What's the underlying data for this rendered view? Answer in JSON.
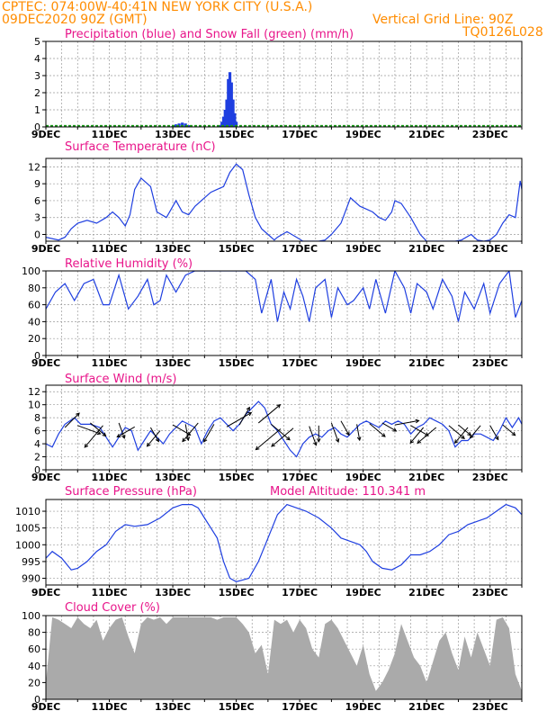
{
  "header": {
    "line1": "CPTEC:   074:00W-40:41N   NEW YORK CITY (U.S.A.)",
    "line2": "09DEC2020 90Z (GMT)",
    "grid_note": "Vertical Grid Line: 90Z",
    "code": "TQ0126L028",
    "color": "#ff8c00"
  },
  "colors": {
    "label": "#e8158a",
    "line": "#1f3fe0",
    "precip": "#1f3fe0",
    "snow": "#1a9a1a",
    "cloud": "#aaaaaa",
    "wind_arrow": "#000000"
  },
  "x_tick_labels": [
    "9DEC",
    "11DEC",
    "13DEC",
    "15DEC",
    "17DEC",
    "19DEC",
    "21DEC",
    "23DEC"
  ],
  "x_tick_days": [
    9,
    11,
    13,
    15,
    17,
    19,
    21,
    23
  ],
  "x_range": [
    9,
    24
  ],
  "chart_data": [
    {
      "type": "bar",
      "title": "Precipitation (blue) and Snow Fall (green) (mm/h)",
      "ylim": [
        0,
        5
      ],
      "yticks": [
        0,
        1,
        2,
        3,
        4,
        5
      ],
      "series": [
        {
          "name": "Precipitation (blue)",
          "color": "#1f3fe0",
          "points": [
            [
              13.0,
              0.05
            ],
            [
              13.1,
              0.15
            ],
            [
              13.2,
              0.2
            ],
            [
              13.3,
              0.25
            ],
            [
              13.4,
              0.2
            ],
            [
              13.5,
              0.1
            ],
            [
              14.5,
              0.1
            ],
            [
              14.55,
              0.3
            ],
            [
              14.6,
              0.6
            ],
            [
              14.65,
              1.0
            ],
            [
              14.7,
              1.6
            ],
            [
              14.75,
              2.8
            ],
            [
              14.8,
              3.2
            ],
            [
              14.85,
              2.6
            ],
            [
              14.9,
              1.6
            ],
            [
              14.95,
              0.8
            ],
            [
              15.0,
              0.3
            ]
          ]
        },
        {
          "name": "Snow Fall (green)",
          "color": "#1a9a1a",
          "points": [
            [
              9.0,
              0.03
            ],
            [
              24.0,
              0.03
            ]
          ]
        }
      ]
    },
    {
      "type": "line",
      "title": "Surface Temperature (nC)",
      "ylim": [
        -1.2,
        13.5
      ],
      "yticks": [
        0,
        3,
        6,
        9,
        12
      ],
      "ytick_labels": [
        "0",
        "3",
        "6",
        "9",
        "12"
      ],
      "x": [
        9.0,
        9.4,
        9.6,
        9.8,
        10.0,
        10.3,
        10.6,
        10.9,
        11.1,
        11.3,
        11.5,
        11.65,
        11.8,
        12.0,
        12.3,
        12.5,
        12.8,
        13.0,
        13.1,
        13.3,
        13.5,
        13.7,
        14.0,
        14.2,
        14.4,
        14.6,
        14.8,
        15.0,
        15.2,
        15.4,
        15.6,
        15.8,
        16.0,
        16.2,
        16.3,
        16.6,
        16.9,
        17.1,
        17.3,
        17.6,
        17.8,
        18.0,
        18.3,
        18.6,
        18.9,
        19.1,
        19.3,
        19.5,
        19.7,
        19.9,
        20.0,
        20.2,
        20.5,
        20.8,
        21.0,
        21.3,
        21.6,
        21.9,
        22.1,
        22.4,
        22.6,
        22.8,
        23.0,
        23.2,
        23.4,
        23.6,
        23.8,
        23.95,
        24.0
      ],
      "series": [
        {
          "name": "",
          "color": "#1f3fe0",
          "values": [
            -0.5,
            -1.0,
            -0.5,
            1.0,
            2.0,
            2.5,
            2.0,
            3.0,
            4.0,
            3.0,
            1.5,
            3.5,
            8.0,
            10.0,
            8.5,
            4.0,
            3.0,
            5.0,
            6.0,
            4.0,
            3.5,
            5.0,
            6.5,
            7.5,
            8.0,
            8.5,
            11.0,
            12.5,
            11.5,
            7.0,
            3.0,
            1.0,
            0.0,
            -1.0,
            -0.5,
            0.5,
            -0.5,
            -1.5,
            -2.0,
            -1.5,
            -1.0,
            0.0,
            2.0,
            6.5,
            5.0,
            4.5,
            4.0,
            3.0,
            2.5,
            4.0,
            6.0,
            5.5,
            3.0,
            0.0,
            -1.5,
            -2.0,
            -2.5,
            -1.8,
            -1.0,
            0.0,
            -1.0,
            -2.0,
            -1.0,
            0.0,
            2.0,
            3.5,
            3.0,
            9.5,
            8.0
          ]
        }
      ]
    },
    {
      "type": "line",
      "title": "Relative Humidity (%)",
      "ylim": [
        0,
        100
      ],
      "yticks": [
        0,
        20,
        40,
        60,
        80,
        100
      ],
      "x": [
        9.0,
        9.3,
        9.6,
        9.9,
        10.2,
        10.5,
        10.8,
        11.0,
        11.3,
        11.6,
        11.9,
        12.2,
        12.4,
        12.6,
        12.8,
        13.1,
        13.4,
        13.7,
        13.9,
        14.1,
        14.4,
        14.7,
        15.0,
        15.3,
        15.6,
        15.8,
        15.95,
        16.1,
        16.3,
        16.5,
        16.7,
        16.9,
        17.1,
        17.3,
        17.5,
        17.8,
        18.0,
        18.2,
        18.5,
        18.7,
        19.0,
        19.2,
        19.4,
        19.7,
        20.0,
        20.3,
        20.5,
        20.7,
        21.0,
        21.2,
        21.5,
        21.8,
        22.0,
        22.2,
        22.5,
        22.8,
        23.0,
        23.3,
        23.6,
        23.8,
        24.0
      ],
      "series": [
        {
          "name": "",
          "color": "#1f3fe0",
          "values": [
            55,
            75,
            85,
            65,
            85,
            90,
            60,
            60,
            95,
            55,
            70,
            90,
            60,
            65,
            95,
            75,
            95,
            100,
            100,
            100,
            100,
            100,
            100,
            100,
            90,
            50,
            70,
            90,
            40,
            75,
            55,
            90,
            70,
            40,
            80,
            90,
            45,
            80,
            60,
            65,
            80,
            55,
            90,
            50,
            100,
            80,
            50,
            85,
            75,
            55,
            90,
            70,
            40,
            75,
            55,
            85,
            50,
            85,
            100,
            45,
            65
          ]
        }
      ]
    },
    {
      "type": "line",
      "title": "Surface Wind (m/s)",
      "ylim": [
        0,
        13
      ],
      "yticks": [
        0,
        2,
        4,
        6,
        8,
        10,
        12
      ],
      "x": [
        9.0,
        9.2,
        9.4,
        9.6,
        9.9,
        10.1,
        10.4,
        10.7,
        10.9,
        11.1,
        11.3,
        11.5,
        11.7,
        11.9,
        12.1,
        12.3,
        12.5,
        12.7,
        12.9,
        13.1,
        13.3,
        13.5,
        13.7,
        13.9,
        14.1,
        14.3,
        14.5,
        14.7,
        14.9,
        15.1,
        15.3,
        15.5,
        15.7,
        15.9,
        16.1,
        16.3,
        16.5,
        16.7,
        16.9,
        17.1,
        17.3,
        17.5,
        17.7,
        17.9,
        18.1,
        18.3,
        18.5,
        18.7,
        18.9,
        19.1,
        19.3,
        19.5,
        19.7,
        19.9,
        20.1,
        20.3,
        20.5,
        20.7,
        20.9,
        21.1,
        21.3,
        21.5,
        21.7,
        21.9,
        22.1,
        22.3,
        22.5,
        22.7,
        22.9,
        23.1,
        23.3,
        23.5,
        23.7,
        23.9,
        24.0
      ],
      "series": [
        {
          "name": "",
          "color": "#1f3fe0",
          "values": [
            4.0,
            3.5,
            5.5,
            7.0,
            8.0,
            7.0,
            7.0,
            6.5,
            5.0,
            3.5,
            5.0,
            6.5,
            6.0,
            3.0,
            4.5,
            6.0,
            5.0,
            4.0,
            5.5,
            6.5,
            7.5,
            7.0,
            6.5,
            4.0,
            6.0,
            7.5,
            8.0,
            7.0,
            6.0,
            7.0,
            8.5,
            9.5,
            10.5,
            9.5,
            7.0,
            6.0,
            4.5,
            3.0,
            2.0,
            4.0,
            5.0,
            5.5,
            5.0,
            6.0,
            6.5,
            5.5,
            5.0,
            6.0,
            7.0,
            7.5,
            7.0,
            6.5,
            7.5,
            7.0,
            7.5,
            7.0,
            5.5,
            6.5,
            7.0,
            8.0,
            7.5,
            7.0,
            6.0,
            3.5,
            4.5,
            4.5,
            5.5,
            5.5,
            5.0,
            4.5,
            6.0,
            8.0,
            6.5,
            8.0,
            7.0
          ]
        }
      ],
      "arrows": [
        [
          9.6,
          6.5,
          45,
          5
        ],
        [
          10.0,
          6.8,
          -20,
          6
        ],
        [
          10.4,
          7.2,
          -40,
          5
        ],
        [
          10.8,
          6.8,
          -130,
          7
        ],
        [
          11.3,
          7.2,
          -70,
          4
        ],
        [
          11.8,
          6.6,
          -150,
          5
        ],
        [
          12.3,
          6.5,
          -60,
          4
        ],
        [
          12.6,
          6.0,
          -130,
          5
        ],
        [
          13.0,
          6.9,
          -30,
          5
        ],
        [
          13.4,
          7.0,
          -80,
          4
        ],
        [
          13.8,
          7.2,
          -130,
          6
        ],
        [
          14.3,
          7.0,
          -120,
          5
        ],
        [
          14.7,
          6.6,
          30,
          7
        ],
        [
          15.1,
          6.9,
          60,
          5
        ],
        [
          15.7,
          7.2,
          40,
          7
        ],
        [
          16.1,
          7.0,
          -40,
          6
        ],
        [
          16.4,
          6.3,
          -140,
          8
        ],
        [
          16.8,
          6.4,
          -140,
          7
        ],
        [
          17.3,
          6.7,
          -70,
          5
        ],
        [
          17.6,
          6.8,
          -90,
          4
        ],
        [
          18.0,
          7.2,
          -70,
          5
        ],
        [
          18.3,
          7.5,
          -60,
          4
        ],
        [
          18.8,
          7.0,
          -80,
          4
        ],
        [
          19.2,
          7.1,
          -40,
          5
        ],
        [
          19.6,
          7.2,
          -30,
          4
        ],
        [
          20.0,
          6.9,
          10,
          6
        ],
        [
          20.5,
          6.8,
          -30,
          5
        ],
        [
          20.9,
          6.5,
          -130,
          5
        ],
        [
          21.3,
          6.5,
          -140,
          6
        ],
        [
          21.7,
          6.8,
          -40,
          5
        ],
        [
          22.0,
          6.9,
          -40,
          4
        ],
        [
          22.3,
          6.5,
          -130,
          5
        ],
        [
          22.7,
          6.8,
          -130,
          4
        ],
        [
          23.0,
          6.8,
          -60,
          4
        ],
        [
          23.4,
          6.9,
          -40,
          4
        ]
      ]
    },
    {
      "type": "line",
      "title": "Surface Pressure (hPa)",
      "annotation": "Model Altitude: 110.341 m",
      "ylim": [
        988,
        1013.5
      ],
      "yticks": [
        990,
        995,
        1000,
        1005,
        1010
      ],
      "x": [
        9.0,
        9.2,
        9.5,
        9.8,
        10.0,
        10.3,
        10.6,
        10.9,
        11.2,
        11.5,
        11.8,
        12.2,
        12.6,
        13.0,
        13.3,
        13.6,
        13.8,
        14.0,
        14.2,
        14.4,
        14.6,
        14.8,
        15.0,
        15.2,
        15.4,
        15.7,
        16.0,
        16.3,
        16.6,
        16.9,
        17.2,
        17.6,
        18.0,
        18.3,
        18.6,
        18.9,
        19.1,
        19.3,
        19.6,
        19.9,
        20.2,
        20.5,
        20.8,
        21.1,
        21.4,
        21.7,
        22.0,
        22.3,
        22.6,
        22.9,
        23.2,
        23.5,
        23.8,
        24.0
      ],
      "series": [
        {
          "name": "",
          "color": "#1f3fe0",
          "values": [
            996,
            998,
            996,
            992.5,
            993,
            995,
            998,
            1000,
            1004,
            1006,
            1005.5,
            1006,
            1008,
            1011,
            1012,
            1012,
            1011,
            1008,
            1005,
            1002,
            995,
            990,
            989,
            989.5,
            990,
            995,
            1002,
            1009,
            1012,
            1011,
            1010,
            1008,
            1005,
            1002,
            1001,
            1000,
            998,
            995,
            993,
            992.5,
            994,
            997,
            997,
            998,
            1000,
            1003,
            1004,
            1006,
            1007,
            1008,
            1010,
            1012,
            1011,
            1009
          ]
        }
      ]
    },
    {
      "type": "area",
      "title": "Cloud Cover (%)",
      "ylim": [
        0,
        100
      ],
      "yticks": [
        0,
        20,
        40,
        60,
        80,
        100
      ],
      "x": [
        9.0,
        9.2,
        9.4,
        9.6,
        9.8,
        10.0,
        10.2,
        10.4,
        10.6,
        10.8,
        11.0,
        11.2,
        11.4,
        11.6,
        11.8,
        12.0,
        12.2,
        12.4,
        12.6,
        12.8,
        13.0,
        13.2,
        13.4,
        13.6,
        13.8,
        14.0,
        14.2,
        14.4,
        14.6,
        14.8,
        15.0,
        15.2,
        15.4,
        15.6,
        15.8,
        16.0,
        16.2,
        16.4,
        16.6,
        16.8,
        17.0,
        17.2,
        17.4,
        17.6,
        17.8,
        18.0,
        18.2,
        18.4,
        18.6,
        18.8,
        19.0,
        19.2,
        19.4,
        19.6,
        19.8,
        20.0,
        20.2,
        20.4,
        20.6,
        20.8,
        21.0,
        21.2,
        21.4,
        21.6,
        21.8,
        22.0,
        22.2,
        22.4,
        22.6,
        22.8,
        23.0,
        23.2,
        23.4,
        23.6,
        23.8,
        24.0
      ],
      "series": [
        {
          "name": "",
          "color": "#aaaaaa",
          "values": [
            20,
            98,
            95,
            90,
            85,
            98,
            90,
            85,
            95,
            70,
            85,
            95,
            98,
            75,
            55,
            90,
            98,
            95,
            98,
            90,
            98,
            98,
            98,
            98,
            98,
            98,
            98,
            95,
            98,
            98,
            98,
            90,
            80,
            55,
            65,
            30,
            95,
            90,
            95,
            80,
            95,
            85,
            60,
            50,
            90,
            95,
            85,
            70,
            55,
            40,
            65,
            30,
            10,
            20,
            35,
            55,
            90,
            70,
            50,
            40,
            20,
            45,
            70,
            80,
            55,
            35,
            75,
            50,
            80,
            60,
            40,
            95,
            98,
            85,
            30,
            10
          ]
        }
      ]
    }
  ]
}
